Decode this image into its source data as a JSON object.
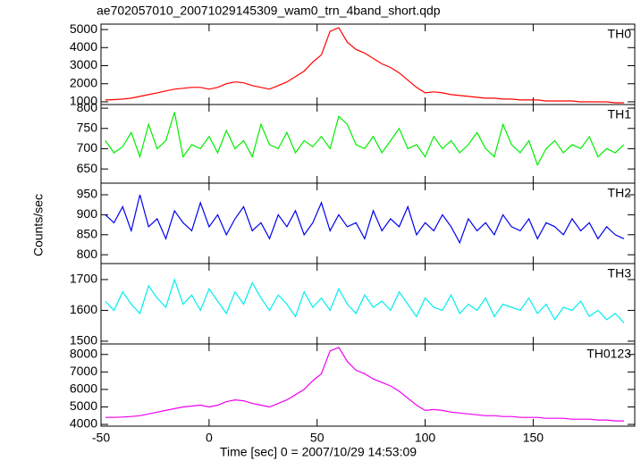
{
  "chart_data": {
    "type": "line",
    "title": "ae702057010_20071029145309_wam0_trn_4band_short.qdp",
    "xlabel": "Time [sec] 0 = 2007/10/29 14:53:09",
    "ylabel": "Counts/sec",
    "xlim": [
      -50,
      197
    ],
    "xticks": [
      -50,
      0,
      50,
      100,
      150
    ],
    "x": [
      -48,
      -44,
      -40,
      -36,
      -32,
      -28,
      -24,
      -20,
      -16,
      -12,
      -8,
      -4,
      0,
      4,
      8,
      12,
      16,
      20,
      24,
      28,
      32,
      36,
      40,
      44,
      48,
      52,
      56,
      60,
      64,
      68,
      72,
      76,
      80,
      84,
      88,
      92,
      96,
      100,
      104,
      108,
      112,
      116,
      120,
      124,
      128,
      132,
      136,
      140,
      144,
      148,
      152,
      156,
      160,
      164,
      168,
      172,
      176,
      180,
      184,
      188,
      192
    ],
    "panels": [
      {
        "name": "TH0",
        "color": "#ff0000",
        "ylim": [
          850,
          5300
        ],
        "yticks": [
          1000,
          2000,
          3000,
          4000,
          5000
        ],
        "values": [
          1100,
          1120,
          1150,
          1200,
          1300,
          1400,
          1500,
          1600,
          1700,
          1750,
          1800,
          1800,
          1700,
          1800,
          2000,
          2100,
          2050,
          1900,
          1800,
          1700,
          1900,
          2100,
          2400,
          2700,
          3200,
          3600,
          4900,
          5100,
          4300,
          3900,
          3700,
          3400,
          3100,
          2900,
          2600,
          2200,
          1800,
          1500,
          1550,
          1500,
          1400,
          1350,
          1300,
          1250,
          1200,
          1200,
          1150,
          1150,
          1100,
          1100,
          1100,
          1050,
          1050,
          1050,
          1050,
          1000,
          1000,
          1000,
          1000,
          950,
          950
        ]
      },
      {
        "name": "TH1",
        "color": "#00ee00",
        "ylim": [
          615,
          809
        ],
        "yticks": [
          650,
          700,
          750,
          800
        ],
        "values": [
          720,
          690,
          705,
          740,
          680,
          760,
          700,
          720,
          790,
          680,
          710,
          700,
          730,
          690,
          745,
          700,
          720,
          680,
          760,
          710,
          700,
          740,
          690,
          720,
          705,
          730,
          700,
          780,
          760,
          710,
          700,
          730,
          690,
          720,
          750,
          700,
          710,
          680,
          730,
          700,
          720,
          690,
          710,
          740,
          700,
          680,
          760,
          710,
          690,
          720,
          660,
          700,
          720,
          690,
          710,
          700,
          730,
          680,
          700,
          690,
          710
        ]
      },
      {
        "name": "TH2",
        "color": "#0000ee",
        "ylim": [
          778,
          979
        ],
        "yticks": [
          800,
          850,
          900,
          950
        ],
        "values": [
          900,
          880,
          920,
          860,
          950,
          870,
          890,
          840,
          910,
          880,
          860,
          930,
          870,
          900,
          850,
          890,
          920,
          860,
          880,
          840,
          900,
          870,
          910,
          850,
          880,
          930,
          860,
          900,
          870,
          880,
          840,
          910,
          860,
          890,
          870,
          920,
          850,
          880,
          860,
          900,
          870,
          830,
          890,
          860,
          880,
          850,
          900,
          870,
          860,
          890,
          840,
          880,
          870,
          850,
          890,
          860,
          880,
          840,
          870,
          850,
          840
        ]
      },
      {
        "name": "TH3",
        "color": "#00eeee",
        "ylim": [
          1491,
          1752
        ],
        "yticks": [
          1500,
          1600,
          1700
        ],
        "values": [
          1630,
          1600,
          1660,
          1620,
          1590,
          1680,
          1640,
          1610,
          1700,
          1620,
          1650,
          1600,
          1670,
          1630,
          1590,
          1660,
          1620,
          1690,
          1640,
          1600,
          1650,
          1620,
          1580,
          1660,
          1610,
          1640,
          1600,
          1670,
          1620,
          1590,
          1650,
          1610,
          1630,
          1600,
          1660,
          1620,
          1580,
          1640,
          1610,
          1600,
          1650,
          1590,
          1620,
          1600,
          1640,
          1580,
          1620,
          1610,
          1600,
          1640,
          1590,
          1620,
          1570,
          1610,
          1600,
          1630,
          1580,
          1600,
          1570,
          1590,
          1560
        ]
      },
      {
        "name": "TH0123",
        "color": "#ee00ee",
        "ylim": [
          3900,
          8600
        ],
        "yticks": [
          4000,
          5000,
          6000,
          7000,
          8000
        ],
        "values": [
          4400,
          4400,
          4420,
          4450,
          4500,
          4600,
          4700,
          4800,
          4900,
          5000,
          5050,
          5100,
          5000,
          5100,
          5300,
          5400,
          5350,
          5200,
          5100,
          5000,
          5200,
          5400,
          5700,
          6000,
          6500,
          6900,
          8200,
          8400,
          7600,
          7100,
          6900,
          6600,
          6400,
          6200,
          5900,
          5500,
          5100,
          4800,
          4850,
          4800,
          4700,
          4650,
          4600,
          4550,
          4500,
          4500,
          4450,
          4450,
          4400,
          4400,
          4400,
          4350,
          4350,
          4350,
          4300,
          4300,
          4300,
          4250,
          4250,
          4200,
          4200
        ]
      }
    ]
  }
}
